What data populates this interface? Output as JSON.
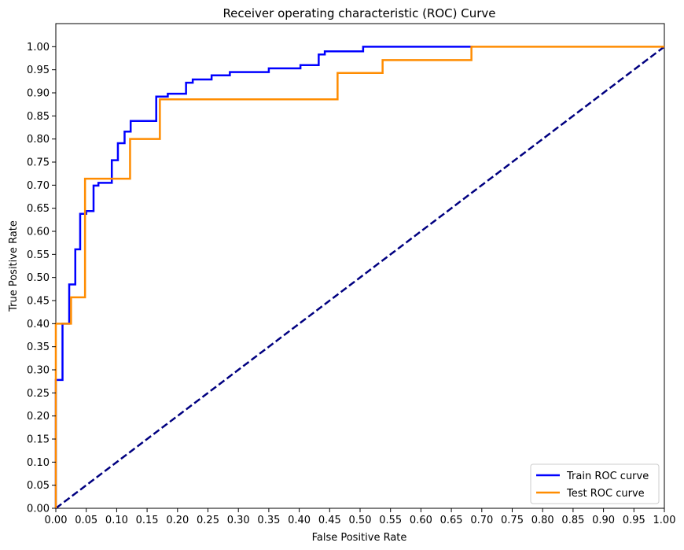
{
  "chart_data": {
    "type": "line",
    "title": "Receiver operating characteristic (ROC) Curve",
    "xlabel": "False Positive Rate",
    "ylabel": "True Positive Rate",
    "xlim": [
      0,
      1
    ],
    "ylim": [
      0,
      1.05
    ],
    "xticks": [
      "0.00",
      "0.05",
      "0.10",
      "0.15",
      "0.20",
      "0.25",
      "0.30",
      "0.35",
      "0.40",
      "0.45",
      "0.50",
      "0.55",
      "0.60",
      "0.65",
      "0.70",
      "0.75",
      "0.80",
      "0.85",
      "0.90",
      "0.95",
      "1.00"
    ],
    "yticks": [
      "0.00",
      "0.05",
      "0.10",
      "0.15",
      "0.20",
      "0.25",
      "0.30",
      "0.35",
      "0.40",
      "0.45",
      "0.50",
      "0.55",
      "0.60",
      "0.65",
      "0.70",
      "0.75",
      "0.80",
      "0.85",
      "0.90",
      "0.95",
      "1.00"
    ],
    "grid": false,
    "legend_position": "lower-right",
    "series": [
      {
        "name": "Train ROC curve",
        "color": "#0000ff",
        "style": "solid",
        "step": true,
        "x": [
          0.0,
          0.0,
          0.011,
          0.011,
          0.022,
          0.022,
          0.032,
          0.032,
          0.04,
          0.04,
          0.05,
          0.05,
          0.062,
          0.062,
          0.07,
          0.07,
          0.092,
          0.092,
          0.102,
          0.102,
          0.113,
          0.113,
          0.123,
          0.123,
          0.165,
          0.165,
          0.184,
          0.184,
          0.214,
          0.214,
          0.225,
          0.225,
          0.256,
          0.256,
          0.286,
          0.286,
          0.35,
          0.35,
          0.402,
          0.402,
          0.432,
          0.432,
          0.442,
          0.442,
          0.505,
          0.505,
          0.685
        ],
        "y": [
          0.0,
          0.278,
          0.278,
          0.4,
          0.4,
          0.485,
          0.485,
          0.561,
          0.561,
          0.638,
          0.638,
          0.644,
          0.644,
          0.699,
          0.699,
          0.705,
          0.705,
          0.754,
          0.754,
          0.791,
          0.791,
          0.816,
          0.816,
          0.839,
          0.839,
          0.892,
          0.892,
          0.898,
          0.898,
          0.922,
          0.922,
          0.929,
          0.929,
          0.938,
          0.938,
          0.945,
          0.945,
          0.953,
          0.953,
          0.96,
          0.96,
          0.983,
          0.983,
          0.99,
          0.99,
          1.0,
          1.0
        ]
      },
      {
        "name": "Test ROC curve",
        "color": "#ff8c00",
        "style": "solid",
        "step": true,
        "x": [
          0.0,
          0.0,
          0.025,
          0.025,
          0.048,
          0.048,
          0.122,
          0.122,
          0.171,
          0.171,
          0.463,
          0.463,
          0.537,
          0.537,
          0.683,
          0.683,
          1.0
        ],
        "y": [
          0.0,
          0.4,
          0.4,
          0.457,
          0.457,
          0.714,
          0.714,
          0.8,
          0.8,
          0.886,
          0.886,
          0.943,
          0.943,
          0.971,
          0.971,
          1.0,
          1.0
        ]
      },
      {
        "name": "",
        "color": "#000080",
        "style": "dashed",
        "step": false,
        "x": [
          0,
          1
        ],
        "y": [
          0,
          1
        ]
      }
    ]
  }
}
